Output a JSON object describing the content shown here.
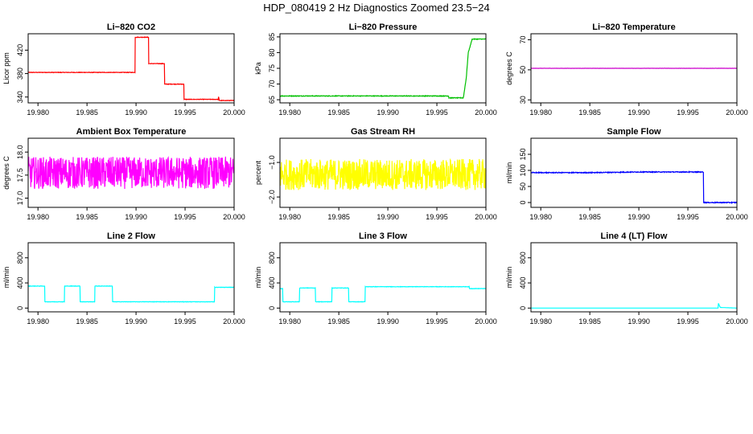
{
  "title": "HDP_080419  2 Hz Diagnostics Zoomed 23.5−24",
  "chart_data": [
    {
      "type": "line",
      "title": "Li−820 CO2",
      "ylabel": "Licor ppm",
      "color": "#ff0000",
      "xlim": [
        19.979,
        20.0
      ],
      "xticks": [
        "19.980",
        "19.985",
        "19.990",
        "19.995",
        "20.000"
      ],
      "ylim": [
        330,
        448
      ],
      "yticks": [
        340,
        380,
        420
      ],
      "noise": 0.4,
      "points": [
        [
          19.979,
          382
        ],
        [
          19.9899,
          382
        ],
        [
          19.9899,
          442
        ],
        [
          19.9913,
          442
        ],
        [
          19.9913,
          397
        ],
        [
          19.9929,
          397
        ],
        [
          19.9929,
          362
        ],
        [
          19.9949,
          362
        ],
        [
          19.9949,
          336
        ],
        [
          19.9984,
          336
        ],
        [
          19.9984,
          341
        ],
        [
          19.9985,
          334
        ],
        [
          20.0,
          334
        ]
      ]
    },
    {
      "type": "line",
      "title": "Li−820 Pressure",
      "ylabel": "kPa",
      "color": "#00c000",
      "xlim": [
        19.979,
        20.0
      ],
      "xticks": [
        "19.980",
        "19.985",
        "19.990",
        "19.995",
        "20.000"
      ],
      "ylim": [
        64,
        86
      ],
      "yticks": [
        65,
        70,
        75,
        80,
        85
      ],
      "noise": 0.1,
      "points": [
        [
          19.979,
          66.2
        ],
        [
          19.9962,
          66.2
        ],
        [
          19.9962,
          65.6
        ],
        [
          19.9977,
          65.6
        ],
        [
          19.998,
          72
        ],
        [
          19.9982,
          80
        ],
        [
          19.9986,
          84.3
        ],
        [
          20.0,
          84.3
        ]
      ]
    },
    {
      "type": "line",
      "title": "Li−820 Temperature",
      "ylabel": "degrees C",
      "color": "#cc00cc",
      "xlim": [
        19.979,
        20.0
      ],
      "xticks": [
        "19.980",
        "19.985",
        "19.990",
        "19.995",
        "20.000"
      ],
      "ylim": [
        28,
        74
      ],
      "yticks": [
        30,
        50,
        70
      ],
      "noise": 0.05,
      "points": [
        [
          19.979,
          51
        ],
        [
          20.0,
          51
        ]
      ]
    },
    {
      "type": "line",
      "title": "Ambient Box Temperature",
      "ylabel": "degrees C",
      "color": "#ff00ff",
      "xlim": [
        19.979,
        20.0
      ],
      "xticks": [
        "19.980",
        "19.985",
        "19.990",
        "19.995",
        "20.000"
      ],
      "ylim": [
        16.8,
        18.3
      ],
      "yticks": [
        "17.0",
        "17.5",
        "18.0"
      ],
      "noise": 0.35,
      "points": [
        [
          19.979,
          17.55
        ],
        [
          20.0,
          17.55
        ]
      ]
    },
    {
      "type": "line",
      "title": "Gas Stream RH",
      "ylabel": "percent",
      "color": "#ffff00",
      "xlim": [
        19.979,
        20.0
      ],
      "xticks": [
        "19.980",
        "19.985",
        "19.990",
        "19.995",
        "20.000"
      ],
      "ylim": [
        -2.3,
        -0.3
      ],
      "yticks": [
        "−2.0",
        "−1.0"
      ],
      "noise": 0.45,
      "points": [
        [
          19.979,
          -1.35
        ],
        [
          20.0,
          -1.35
        ]
      ]
    },
    {
      "type": "line",
      "title": "Sample Flow",
      "ylabel": "ml/min",
      "color": "#0000ff",
      "xlim": [
        19.979,
        20.0
      ],
      "xticks": [
        "19.980",
        "19.985",
        "19.990",
        "19.995",
        "20.000"
      ],
      "ylim": [
        -15,
        200
      ],
      "yticks": [
        0,
        50,
        100,
        150
      ],
      "noise": 1.2,
      "points": [
        [
          19.979,
          93
        ],
        [
          19.985,
          93
        ],
        [
          19.99,
          95
        ],
        [
          19.9966,
          95
        ],
        [
          19.9966,
          0
        ],
        [
          20.0,
          0
        ]
      ]
    },
    {
      "type": "line",
      "title": "Line 2 Flow",
      "ylabel": "ml/min",
      "color": "#00ffff",
      "xlim": [
        19.979,
        20.0
      ],
      "xticks": [
        "19.980",
        "19.985",
        "19.990",
        "19.995",
        "20.000"
      ],
      "ylim": [
        -60,
        1040
      ],
      "yticks": [
        0,
        400,
        800
      ],
      "noise": 3,
      "points": [
        [
          19.979,
          350
        ],
        [
          19.9807,
          350
        ],
        [
          19.9807,
          100
        ],
        [
          19.9827,
          100
        ],
        [
          19.9827,
          350
        ],
        [
          19.9843,
          350
        ],
        [
          19.9843,
          100
        ],
        [
          19.9858,
          100
        ],
        [
          19.9858,
          350
        ],
        [
          19.9876,
          350
        ],
        [
          19.9876,
          100
        ],
        [
          19.998,
          100
        ],
        [
          19.998,
          330
        ],
        [
          20.0,
          330
        ]
      ]
    },
    {
      "type": "line",
      "title": "Line 3 Flow",
      "ylabel": "ml/min",
      "color": "#00ffff",
      "xlim": [
        19.979,
        20.0
      ],
      "xticks": [
        "19.980",
        "19.985",
        "19.990",
        "19.995",
        "20.000"
      ],
      "ylim": [
        -60,
        1040
      ],
      "yticks": [
        0,
        400,
        800
      ],
      "noise": 3,
      "points": [
        [
          19.979,
          310
        ],
        [
          19.9793,
          310
        ],
        [
          19.9793,
          100
        ],
        [
          19.981,
          100
        ],
        [
          19.981,
          320
        ],
        [
          19.9826,
          320
        ],
        [
          19.9826,
          100
        ],
        [
          19.9843,
          100
        ],
        [
          19.9843,
          320
        ],
        [
          19.986,
          320
        ],
        [
          19.986,
          100
        ],
        [
          19.9877,
          100
        ],
        [
          19.9877,
          340
        ],
        [
          19.9983,
          340
        ],
        [
          19.9983,
          310
        ],
        [
          20.0,
          310
        ]
      ]
    },
    {
      "type": "line",
      "title": "Line 4 (LT) Flow",
      "ylabel": "ml/min",
      "color": "#00ffff",
      "xlim": [
        19.979,
        20.0
      ],
      "xticks": [
        "19.980",
        "19.985",
        "19.990",
        "19.995",
        "20.000"
      ],
      "ylim": [
        -60,
        1040
      ],
      "yticks": [
        0,
        400,
        800
      ],
      "noise": 0.5,
      "points": [
        [
          19.979,
          0
        ],
        [
          19.9981,
          0
        ],
        [
          19.9981,
          80
        ],
        [
          19.9983,
          10
        ],
        [
          20.0,
          0
        ]
      ]
    }
  ]
}
